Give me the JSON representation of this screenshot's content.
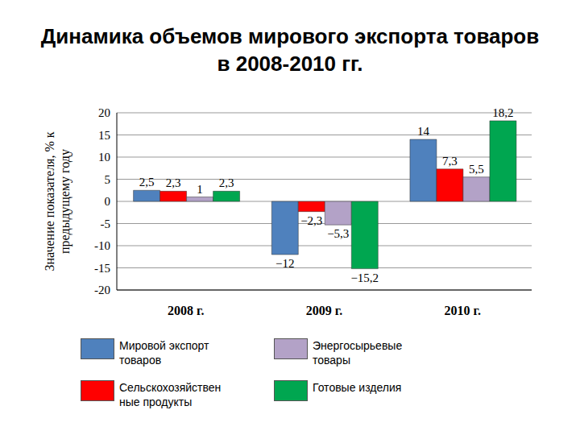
{
  "chart_data": {
    "type": "bar",
    "title": "Динамика объемов мирового экспорта товаров в 2008-2010 гг.",
    "y_label": "Значение показателя, % к предыдущему году",
    "categories": [
      "2008 г.",
      "2009 г.",
      "2010 г."
    ],
    "series": [
      {
        "name": "Мировой экспорт товаров",
        "color": "#4f81bd",
        "values": [
          2.5,
          -12,
          14
        ],
        "value_labels": [
          "2,5",
          "−12",
          "14"
        ]
      },
      {
        "name": "Сельскохозяйственные продукты",
        "color": "#ff0000",
        "values": [
          2.3,
          -2.3,
          7.3
        ],
        "value_labels": [
          "2,3",
          "−2,3",
          "7,3"
        ]
      },
      {
        "name": "Энергосырьевые товары",
        "color": "#b3a2c7",
        "values": [
          1,
          -5.3,
          5.5
        ],
        "value_labels": [
          "1",
          "−5,3",
          "5,5"
        ]
      },
      {
        "name": "Готовые изделия",
        "color": "#00a650",
        "values": [
          2.3,
          -15.2,
          18.2
        ],
        "value_labels": [
          "2,3",
          "−15,2",
          "18,2"
        ]
      }
    ],
    "ylim": [
      -20,
      20
    ],
    "yticks": [
      -20,
      -15,
      -10,
      -5,
      0,
      5,
      10,
      15,
      20
    ],
    "grid": true,
    "data_labels": true,
    "legend": "bottom"
  }
}
